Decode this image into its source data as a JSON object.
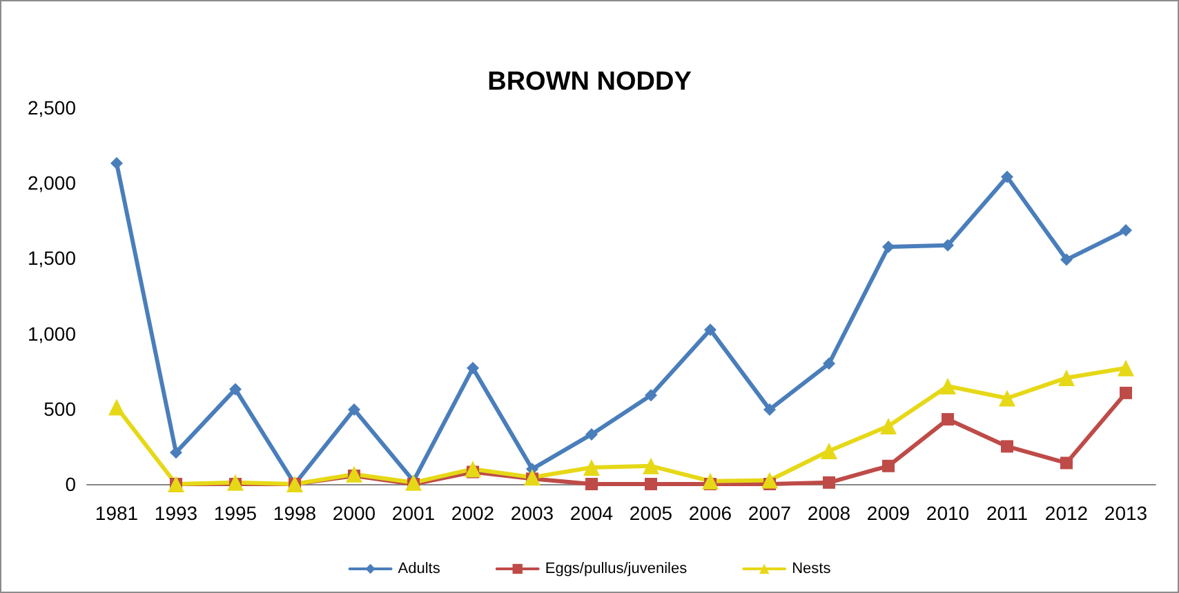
{
  "chart_data": {
    "type": "line",
    "title": "BROWN NODDY",
    "categories": [
      "1981",
      "1993",
      "1995",
      "1998",
      "2000",
      "2001",
      "2002",
      "2003",
      "2004",
      "2005",
      "2006",
      "2007",
      "2008",
      "2009",
      "2010",
      "2011",
      "2012",
      "2013"
    ],
    "series": [
      {
        "name": "Adults",
        "color": "#4a7ebb",
        "marker": "diamond",
        "values": [
          2130,
          210,
          630,
          0,
          495,
          20,
          770,
          100,
          330,
          590,
          1025,
          495,
          800,
          1575,
          1585,
          2040,
          1490,
          1685
        ]
      },
      {
        "name": "Eggs/pullus/juveniles",
        "color": "#be4b48",
        "marker": "square",
        "values": [
          null,
          0,
          0,
          0,
          55,
          0,
          80,
          35,
          0,
          0,
          0,
          0,
          10,
          120,
          430,
          250,
          140,
          605
        ]
      },
      {
        "name": "Nests",
        "color": "#e6d817",
        "marker": "triangle",
        "values": [
          510,
          0,
          10,
          0,
          65,
          10,
          100,
          45,
          110,
          120,
          20,
          25,
          220,
          385,
          650,
          570,
          705,
          770
        ]
      }
    ],
    "ylim": [
      0,
      2500
    ],
    "yticks": [
      {
        "value": 0,
        "label": "0"
      },
      {
        "value": 500,
        "label": "500"
      },
      {
        "value": 1000,
        "label": "1,000"
      },
      {
        "value": 1500,
        "label": "1,500"
      },
      {
        "value": 2000,
        "label": "2,000"
      },
      {
        "value": 2500,
        "label": "2,500"
      }
    ],
    "grid": false,
    "legend": "bottom",
    "line_style": "solid"
  }
}
